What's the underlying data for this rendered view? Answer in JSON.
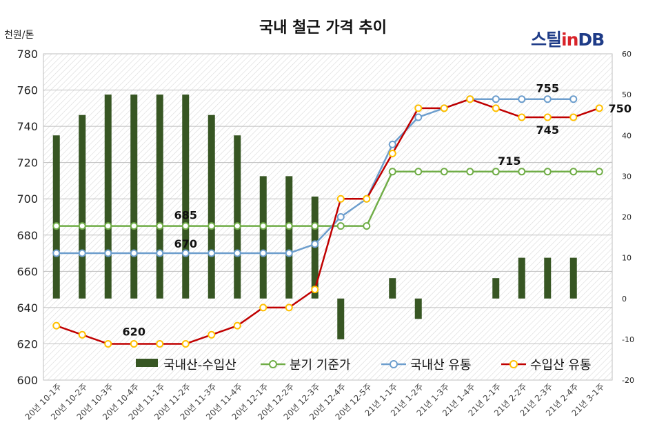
{
  "chart_data": {
    "type": "bar+line",
    "title": "국내 철근 가격 추이",
    "y_left_unit": "천원/톤",
    "y_left_range": [
      600,
      780
    ],
    "y_left_ticks": [
      600,
      620,
      640,
      660,
      680,
      700,
      720,
      740,
      760,
      780
    ],
    "y_right_range": [
      -20,
      60
    ],
    "y_right_ticks": [
      -20,
      -10,
      0,
      10,
      20,
      30,
      40,
      50,
      60
    ],
    "grid": "horizontal",
    "legend_position": "bottom-inside",
    "categories": [
      "20년 10-1주",
      "20년 10-2주",
      "20년 10-3주",
      "20년 10-4주",
      "20년 11-1주",
      "20년 11-2주",
      "20년 11-3주",
      "20년 11-4주",
      "20년 12-1주",
      "20년 12-2주",
      "20년 12-3주",
      "20년 12-4주",
      "20년 12-5주",
      "21년 1-1주",
      "21년 1-2주",
      "21년 1-3주",
      "21년 1-4주",
      "21년 2-1주",
      "21년 2-2주",
      "21년 2-3주",
      "21년 2-4주",
      "21년 3-1주"
    ],
    "series": [
      {
        "name": "국내산-수입산",
        "type": "bar",
        "axis": "right",
        "color": "#375623",
        "values": [
          40,
          45,
          50,
          50,
          50,
          50,
          45,
          40,
          30,
          30,
          25,
          -10,
          null,
          5,
          -5,
          null,
          null,
          5,
          10,
          10,
          10,
          null
        ]
      },
      {
        "name": "분기 기준가",
        "type": "line",
        "axis": "left",
        "color": "#70ad47",
        "marker_fill": "#ffffff",
        "values": [
          685,
          685,
          685,
          685,
          685,
          685,
          685,
          685,
          685,
          685,
          685,
          685,
          685,
          715,
          715,
          715,
          715,
          715,
          715,
          715,
          715,
          715
        ]
      },
      {
        "name": "국내산 유통",
        "type": "line",
        "axis": "left",
        "color": "#6d9ecd",
        "marker_fill": "#ffffff",
        "values": [
          670,
          670,
          670,
          670,
          670,
          670,
          670,
          670,
          670,
          670,
          675,
          690,
          700,
          730,
          745,
          750,
          755,
          755,
          755,
          755,
          755,
          null
        ]
      },
      {
        "name": "수입산 유통",
        "type": "line",
        "axis": "left",
        "color": "#c00000",
        "marker_fill": "#ffffff",
        "marker_stroke": "#ffc000",
        "values": [
          630,
          625,
          620,
          620,
          620,
          620,
          625,
          630,
          640,
          640,
          650,
          700,
          700,
          725,
          750,
          750,
          755,
          750,
          745,
          745,
          745,
          750
        ]
      }
    ],
    "annotations": [
      {
        "text": "685",
        "category_index": 5,
        "value": 685
      },
      {
        "text": "670",
        "category_index": 5,
        "value": 670
      },
      {
        "text": "620",
        "category_index": 3,
        "value": 620
      },
      {
        "text": "715",
        "category_index": 18,
        "value": 715
      },
      {
        "text": "755",
        "category_index": 19,
        "value": 755
      },
      {
        "text": "745",
        "category_index": 19,
        "value": 745
      },
      {
        "text": "750",
        "category_index": 21,
        "value": 750
      }
    ]
  },
  "logo": {
    "part1": "스틸",
    "part2": "in",
    "part3": "DB"
  }
}
